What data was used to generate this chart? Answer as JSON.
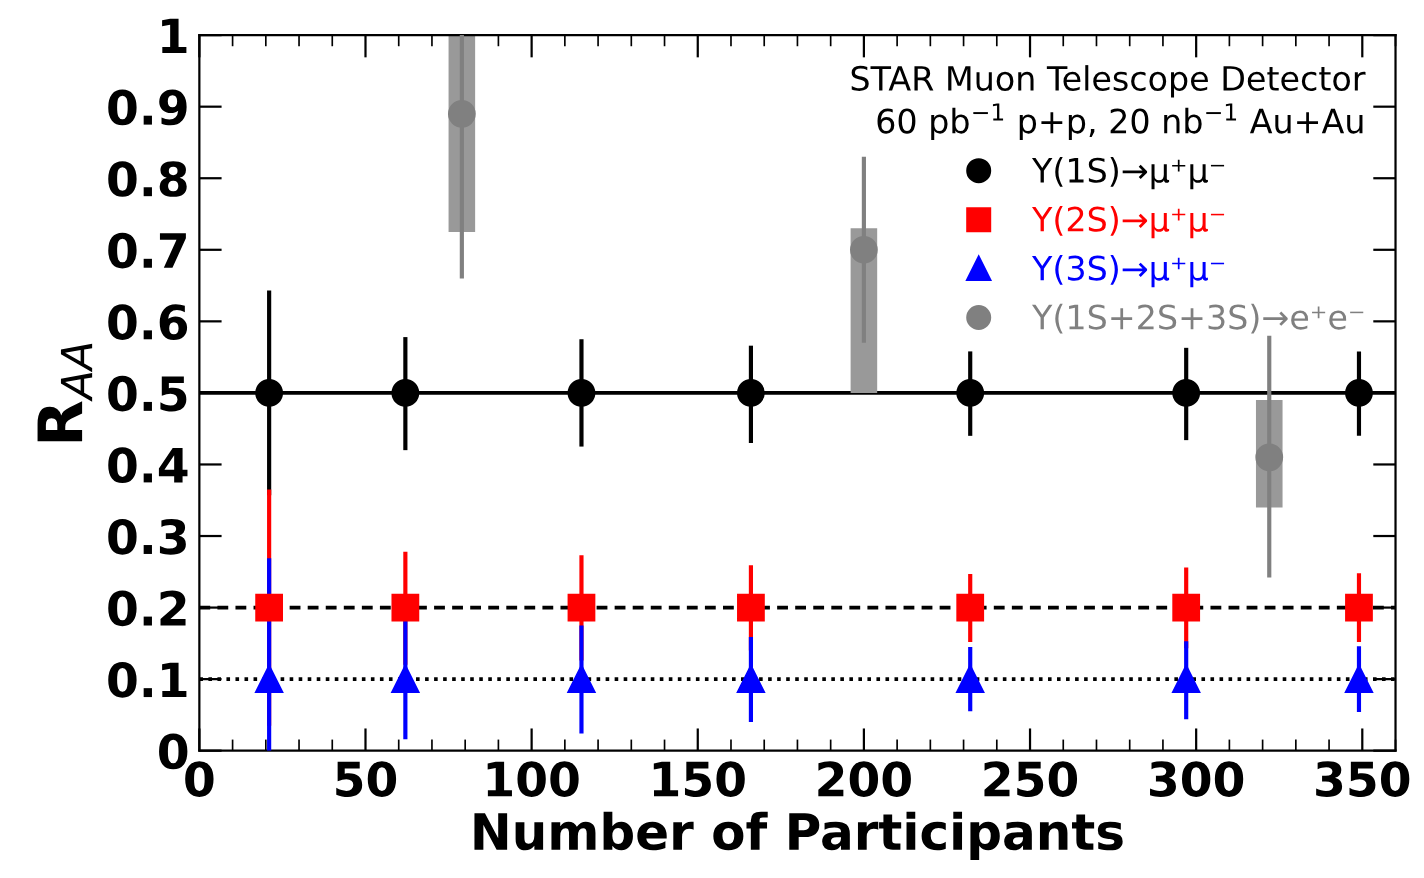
{
  "chart_data": {
    "type": "scatter",
    "xlabel": "Number of Participants",
    "ylabel": "R$_{AA}$",
    "legend_title": "STAR Muon Telescope Detector\n60 pb$^{−1}$ p+p, 20 nb$^{−1}$ Au+Au",
    "xlim": [
      0,
      360
    ],
    "xticks": [
      0,
      50,
      100,
      150,
      200,
      250,
      300,
      350
    ],
    "ylim": [
      0,
      1
    ],
    "yticks": [
      0,
      0.1,
      0.2,
      0.3,
      0.4,
      0.5,
      0.6,
      0.7,
      0.8,
      0.9,
      1
    ],
    "legend": "top right",
    "grid": false,
    "ref_lines": [
      {
        "axis": "y",
        "value": 0.5,
        "color": "#000000",
        "line_style": "solid"
      },
      {
        "axis": "y",
        "value": 0.2,
        "color": "#000000",
        "line_style": "dashed"
      },
      {
        "axis": "y",
        "value": 0.1,
        "color": "#000000",
        "line_style": "dotted"
      }
    ],
    "series": [
      {
        "type": "bar",
        "color": "#999999",
        "x": [
          79,
          200,
          322
        ],
        "base": [
          0.725,
          0.5,
          0.34
        ],
        "values": [
          0.275,
          0.23,
          0.15
        ]
      },
      {
        "name": "Υ(1S)→μ⁺μ⁻",
        "color": "#000000",
        "marker": "circle",
        "x": [
          21,
          62,
          115,
          166,
          232,
          297,
          349
        ],
        "values": [
          0.5,
          0.5,
          0.5,
          0.5,
          0.5,
          0.5,
          0.5
        ],
        "errors": [
          [
            0.357,
            0.643
          ],
          [
            0.42,
            0.578
          ],
          [
            0.425,
            0.575
          ],
          [
            0.43,
            0.566
          ],
          [
            0.44,
            0.558
          ],
          [
            0.434,
            0.563
          ],
          [
            0.44,
            0.558
          ]
        ]
      },
      {
        "name": "Υ(2S)→μ⁺μ⁻",
        "color": "#ff0000",
        "marker": "square",
        "x": [
          21,
          62,
          115,
          166,
          232,
          297,
          349
        ],
        "values": [
          0.2,
          0.2,
          0.2,
          0.2,
          0.2,
          0.2,
          0.2
        ],
        "errors": [
          [
            0.035,
            0.365
          ],
          [
            0.12,
            0.278
          ],
          [
            0.126,
            0.273
          ],
          [
            0.14,
            0.259
          ],
          [
            0.152,
            0.247
          ],
          [
            0.143,
            0.256
          ],
          [
            0.152,
            0.248
          ]
        ]
      },
      {
        "name": "Υ(3S)→μ⁺μ⁻",
        "color": "#0000ff",
        "marker": "triangle",
        "x": [
          21,
          62,
          115,
          166,
          232,
          297,
          349
        ],
        "values": [
          0.1,
          0.1,
          0.1,
          0.1,
          0.1,
          0.1,
          0.1
        ],
        "errors": [
          [
            0,
            0.269
          ],
          [
            0.016,
            0.185
          ],
          [
            0.024,
            0.175
          ],
          [
            0.04,
            0.159
          ],
          [
            0.055,
            0.145
          ],
          [
            0.044,
            0.153
          ],
          [
            0.054,
            0.146
          ]
        ]
      },
      {
        "name": "Υ(1S+2S+3S)→e⁺e⁻",
        "color": "#808080",
        "marker": "circle",
        "x": [
          79,
          200,
          322
        ],
        "values": [
          0.89,
          0.7,
          0.41
        ],
        "errors": [
          [
            0.66,
            1.0
          ],
          [
            0.57,
            0.83
          ],
          [
            0.242,
            0.58
          ]
        ]
      }
    ]
  }
}
